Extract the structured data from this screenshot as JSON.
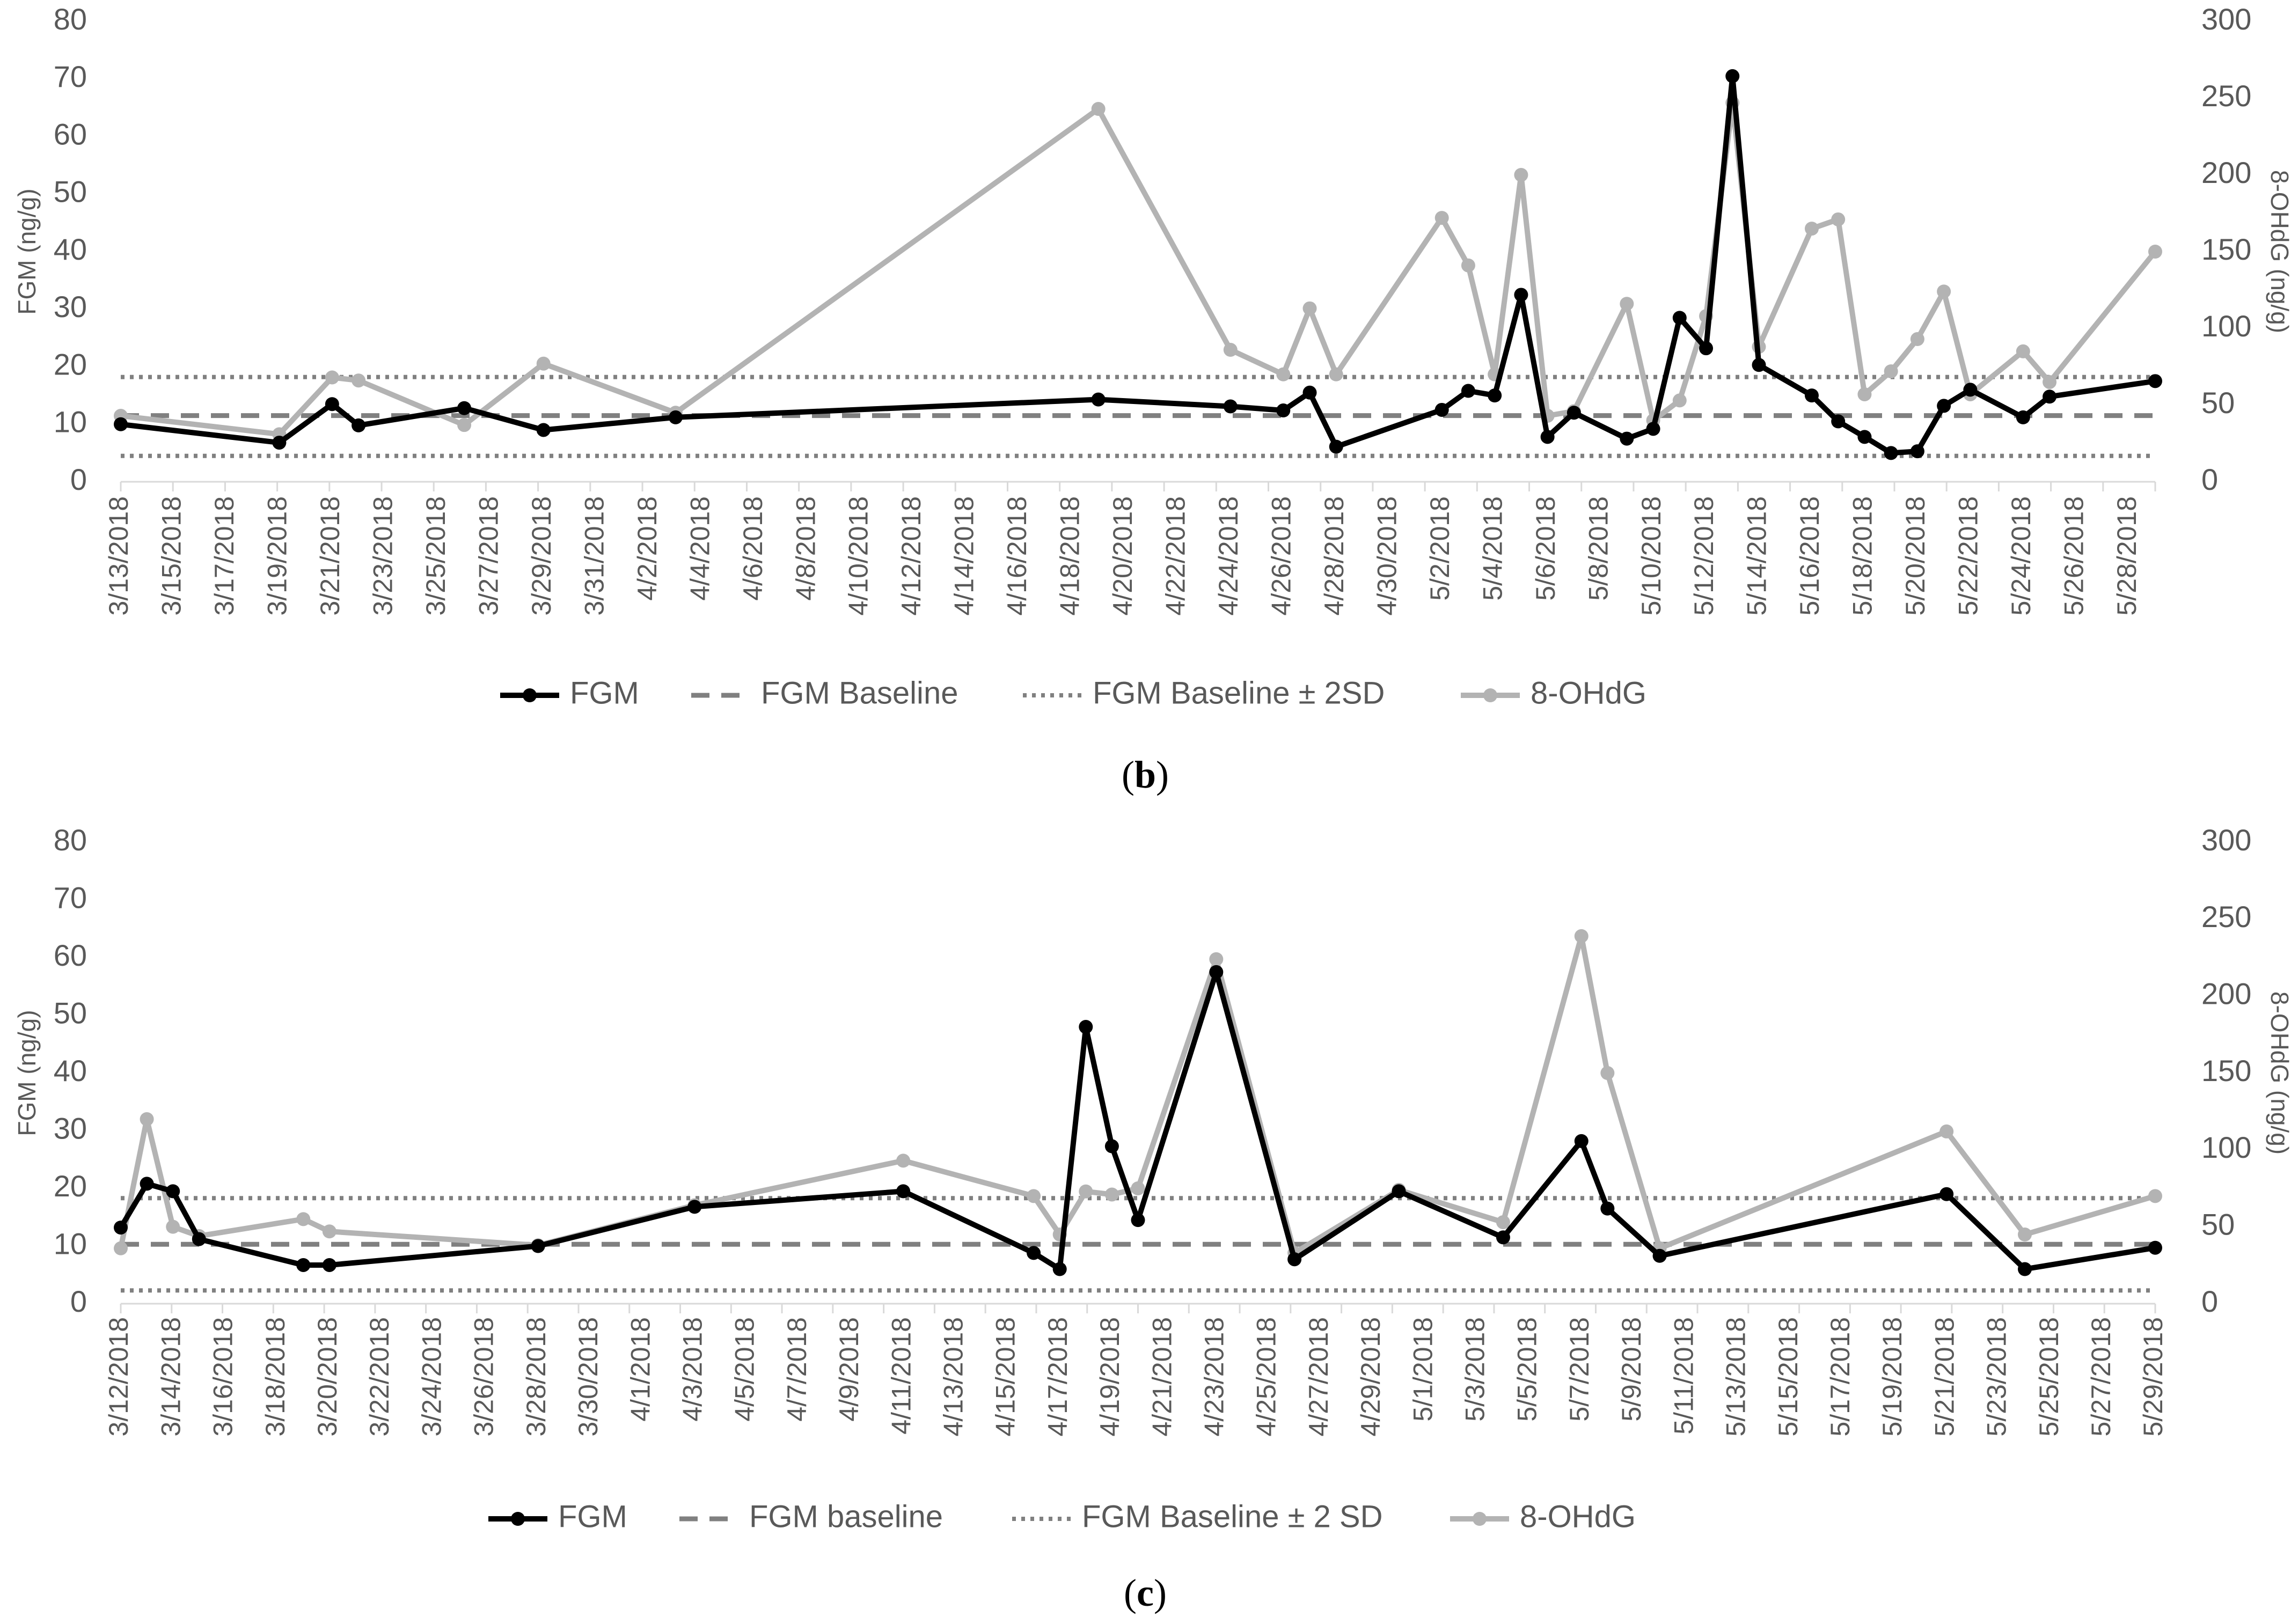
{
  "colors": {
    "fgm": "#000000",
    "baseline": "#808080",
    "ohdg": "#b3b3b3",
    "text": "#595959"
  },
  "chart_data": [
    {
      "type": "line",
      "panel_label": "b",
      "ylabel_left": "FGM (ng/g)",
      "ylabel_right": "8-OHdG (ng/g)",
      "ylim_left": [
        0,
        80
      ],
      "ylim_right": [
        0,
        300
      ],
      "y_ticks_left": [
        "0",
        "10",
        "20",
        "30",
        "40",
        "50",
        "60",
        "70",
        "80"
      ],
      "y_ticks_right": [
        "0",
        "50",
        "100",
        "150",
        "200",
        "250",
        "300"
      ],
      "x_range": [
        "3/13/2018",
        "5/29/2018"
      ],
      "x_tick_labels": [
        "3/13/2018",
        "3/15/2018",
        "3/17/2018",
        "3/19/2018",
        "3/21/2018",
        "3/23/2018",
        "3/25/2018",
        "3/27/2018",
        "3/29/2018",
        "3/31/2018",
        "4/2/2018",
        "4/4/2018",
        "4/6/2018",
        "4/8/2018",
        "4/10/2018",
        "4/12/2018",
        "4/14/2018",
        "4/16/2018",
        "4/18/2018",
        "4/20/2018",
        "4/22/2018",
        "4/24/2018",
        "4/26/2018",
        "4/28/2018",
        "4/30/2018",
        "5/2/2018",
        "5/4/2018",
        "5/6/2018",
        "5/8/2018",
        "5/10/2018",
        "5/12/2018",
        "5/14/2018",
        "5/16/2018",
        "5/18/2018",
        "5/20/2018",
        "5/22/2018",
        "5/24/2018",
        "5/26/2018",
        "5/28/2018"
      ],
      "legend": {
        "fgm": "FGM",
        "baseline": "FGM Baseline",
        "band": "FGM Baseline ± 2SD",
        "ohdg": "8-OHdG"
      },
      "baseline": 11.5,
      "baseline_minus_2sd": 4.5,
      "baseline_plus_2sd": 18.2,
      "series": [
        {
          "key": "fgm",
          "axis": "left",
          "x": [
            "3/13/2018",
            "3/19/2018",
            "3/21/2018",
            "3/22/2018",
            "3/26/2018",
            "3/29/2018",
            "4/3/2018",
            "4/19/2018",
            "4/24/2018",
            "4/26/2018",
            "4/27/2018",
            "4/28/2018",
            "5/2/2018",
            "5/3/2018",
            "5/4/2018",
            "5/5/2018",
            "5/6/2018",
            "5/7/2018",
            "5/9/2018",
            "5/10/2018",
            "5/11/2018",
            "5/12/2018",
            "5/13/2018",
            "5/14/2018",
            "5/16/2018",
            "5/17/2018",
            "5/18/2018",
            "5/19/2018",
            "5/20/2018",
            "5/21/2018",
            "5/22/2018",
            "5/24/2018",
            "5/25/2018",
            "5/29/2018"
          ],
          "y": [
            10,
            6.8,
            13.5,
            9.8,
            12.8,
            9,
            11.2,
            14.3,
            13.1,
            12.4,
            15.5,
            6.1,
            12.5,
            15.8,
            15,
            32.5,
            7.8,
            12,
            7.5,
            9.2,
            28.5,
            23.2,
            70.5,
            20.3,
            15,
            10.5,
            7.8,
            5,
            5.3,
            13.2,
            16,
            11.2,
            14.8,
            17.5
          ]
        },
        {
          "key": "ohdg",
          "axis": "right",
          "x": [
            "3/13/2018",
            "3/19/2018",
            "3/21/2018",
            "3/22/2018",
            "3/26/2018",
            "3/29/2018",
            "4/3/2018",
            "4/19/2018",
            "4/24/2018",
            "4/26/2018",
            "4/27/2018",
            "4/28/2018",
            "5/2/2018",
            "5/3/2018",
            "5/4/2018",
            "5/5/2018",
            "5/6/2018",
            "5/7/2018",
            "5/9/2018",
            "5/10/2018",
            "5/11/2018",
            "5/12/2018",
            "5/13/2018",
            "5/14/2018",
            "5/16/2018",
            "5/17/2018",
            "5/18/2018",
            "5/19/2018",
            "5/20/2018",
            "5/21/2018",
            "5/22/2018",
            "5/24/2018",
            "5/25/2018",
            "5/29/2018"
          ],
          "y": [
            43,
            31,
            68,
            66,
            37,
            77,
            45,
            243,
            86,
            70,
            113,
            70,
            172,
            141,
            70,
            200,
            43,
            46,
            116,
            40,
            53,
            108,
            247,
            88,
            165,
            171,
            57,
            72,
            93,
            124,
            57,
            85,
            65,
            150
          ]
        }
      ]
    },
    {
      "type": "line",
      "panel_label": "c",
      "ylabel_left": "FGM (ng/g)",
      "ylabel_right": "8-OHdG (ng/g)",
      "ylim_left": [
        0,
        80
      ],
      "ylim_right": [
        0,
        300
      ],
      "y_ticks_left": [
        "0",
        "10",
        "20",
        "30",
        "40",
        "50",
        "60",
        "70",
        "80"
      ],
      "y_ticks_right": [
        "0",
        "50",
        "100",
        "150",
        "200",
        "250",
        "300"
      ],
      "x_range": [
        "3/12/2018",
        "5/29/2018"
      ],
      "x_tick_labels": [
        "3/12/2018",
        "3/14/2018",
        "3/16/2018",
        "3/18/2018",
        "3/20/2018",
        "3/22/2018",
        "3/24/2018",
        "3/26/2018",
        "3/28/2018",
        "3/30/2018",
        "4/1/2018",
        "4/3/2018",
        "4/5/2018",
        "4/7/2018",
        "4/9/2018",
        "4/11/2018",
        "4/13/2018",
        "4/15/2018",
        "4/17/2018",
        "4/19/2018",
        "4/21/2018",
        "4/23/2018",
        "4/25/2018",
        "4/27/2018",
        "4/29/2018",
        "5/1/2018",
        "5/3/2018",
        "5/5/2018",
        "5/7/2018",
        "5/9/2018",
        "5/11/2018",
        "5/13/2018",
        "5/15/2018",
        "5/17/2018",
        "5/19/2018",
        "5/21/2018",
        "5/23/2018",
        "5/25/2018",
        "5/27/2018",
        "5/29/2018"
      ],
      "legend": {
        "fgm": "FGM",
        "baseline": "FGM baseline",
        "band": "FGM Baseline ± 2 SD",
        "ohdg": "8-OHdG"
      },
      "baseline": 10.3,
      "baseline_minus_2sd": 2.3,
      "baseline_plus_2sd": 18.3,
      "series": [
        {
          "key": "fgm",
          "axis": "left",
          "x": [
            "3/12/2018",
            "3/13/2018",
            "3/14/2018",
            "3/15/2018",
            "3/19/2018",
            "3/20/2018",
            "3/28/2018",
            "4/3/2018",
            "4/11/2018",
            "4/16/2018",
            "4/17/2018",
            "4/18/2018",
            "4/19/2018",
            "4/20/2018",
            "4/23/2018",
            "4/26/2018",
            "4/30/2018",
            "5/4/2018",
            "5/7/2018",
            "5/8/2018",
            "5/10/2018",
            "5/21/2018",
            "5/24/2018",
            "5/29/2018"
          ],
          "y": [
            13.2,
            20.8,
            19.5,
            11.2,
            6.7,
            6.7,
            10,
            16.8,
            19.5,
            8.8,
            6,
            48,
            27.3,
            14.5,
            57.5,
            7.7,
            19.5,
            11.5,
            28.2,
            16.5,
            8.3,
            19,
            6,
            9.7
          ]
        },
        {
          "key": "ohdg",
          "axis": "right",
          "x": [
            "3/12/2018",
            "3/13/2018",
            "3/14/2018",
            "3/15/2018",
            "3/19/2018",
            "3/20/2018",
            "3/28/2018",
            "4/3/2018",
            "4/11/2018",
            "4/16/2018",
            "4/17/2018",
            "4/18/2018",
            "4/19/2018",
            "4/20/2018",
            "4/23/2018",
            "4/26/2018",
            "4/30/2018",
            "5/4/2018",
            "5/7/2018",
            "5/8/2018",
            "5/10/2018",
            "5/21/2018",
            "5/24/2018",
            "5/29/2018"
          ],
          "y": [
            36,
            120,
            50,
            44,
            55,
            47,
            38,
            64,
            93,
            70,
            45,
            73,
            71,
            75,
            224,
            33,
            74,
            53,
            239,
            150,
            36,
            112,
            45,
            70
          ]
        }
      ]
    }
  ]
}
